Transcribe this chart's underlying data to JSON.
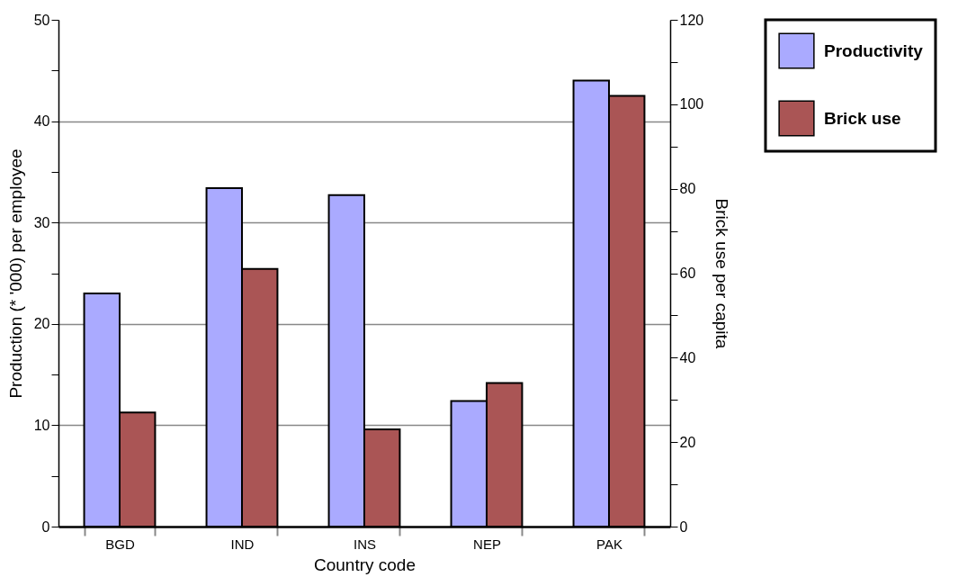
{
  "chart_data": {
    "type": "bar",
    "categories": [
      "BGD",
      "IND",
      "INS",
      "NEP",
      "PAK"
    ],
    "xlabel": "Country code",
    "ylabel": "Production (* '000) per employee",
    "y2label": "Brick use per capita",
    "series": [
      {
        "name": "Productivity",
        "color": "#aaaaff",
        "values": [
          23.0,
          33.4,
          32.7,
          12.4,
          44.0
        ]
      },
      {
        "name": "Brick use",
        "color": "#aa5555",
        "axis": "y2",
        "values": [
          27,
          61,
          23,
          34,
          102
        ]
      }
    ],
    "ylim": [
      0,
      50
    ],
    "yticks": [
      0,
      {
        "value": 5,
        "label": null
      },
      10,
      {
        "value": 15,
        "label": null
      },
      20,
      {
        "value": 25,
        "label": null
      },
      30,
      {
        "value": 35,
        "label": null
      },
      40,
      {
        "value": 45,
        "label": null
      },
      50
    ],
    "y2lim": [
      0,
      120
    ],
    "y2ticks": [
      0,
      {
        "value": 10,
        "label": null
      },
      20,
      {
        "value": 30,
        "label": null
      },
      40,
      {
        "value": 50,
        "label": null
      },
      60,
      {
        "value": 70,
        "label": null
      },
      80,
      {
        "value": 90,
        "label": null
      },
      100,
      {
        "value": 110,
        "label": null
      },
      120
    ],
    "grid": "y",
    "legend": "right"
  }
}
